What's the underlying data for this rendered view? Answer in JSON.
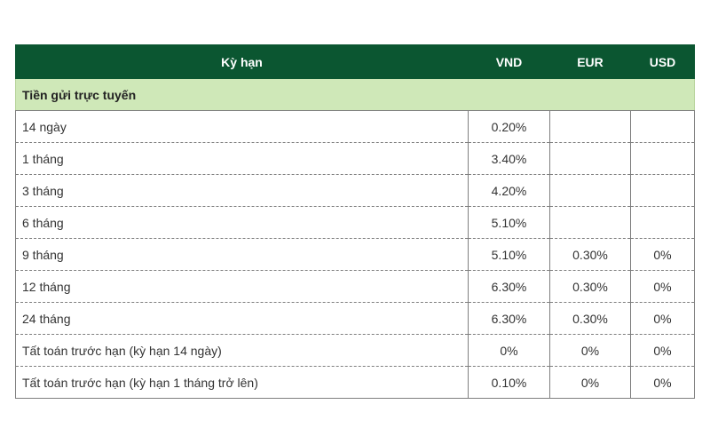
{
  "table": {
    "headers": {
      "term": "Kỳ hạn",
      "vnd": "VND",
      "eur": "EUR",
      "usd": "USD"
    },
    "section_title": "Tiền gửi trực tuyến",
    "rows": [
      {
        "term": "14 ngày",
        "vnd": "0.20%",
        "eur": "",
        "usd": ""
      },
      {
        "term": "1 tháng",
        "vnd": "3.40%",
        "eur": "",
        "usd": ""
      },
      {
        "term": "3 tháng",
        "vnd": "4.20%",
        "eur": "",
        "usd": ""
      },
      {
        "term": "6 tháng",
        "vnd": "5.10%",
        "eur": "",
        "usd": ""
      },
      {
        "term": "9 tháng",
        "vnd": "5.10%",
        "eur": "0.30%",
        "usd": "0%"
      },
      {
        "term": "12 tháng",
        "vnd": "6.30%",
        "eur": "0.30%",
        "usd": "0%"
      },
      {
        "term": "24 tháng",
        "vnd": "6.30%",
        "eur": "0.30%",
        "usd": "0%"
      },
      {
        "term": "Tất toán trước hạn (kỳ hạn 14 ngày)",
        "vnd": "0%",
        "eur": "0%",
        "usd": "0%"
      },
      {
        "term": "Tất toán trước hạn (kỳ hạn 1 tháng trở lên)",
        "vnd": "0.10%",
        "eur": "0%",
        "usd": "0%"
      }
    ]
  },
  "colors": {
    "header_bg": "#0b5631",
    "section_bg": "#cfe8b8",
    "border": "#7f7f7f"
  }
}
